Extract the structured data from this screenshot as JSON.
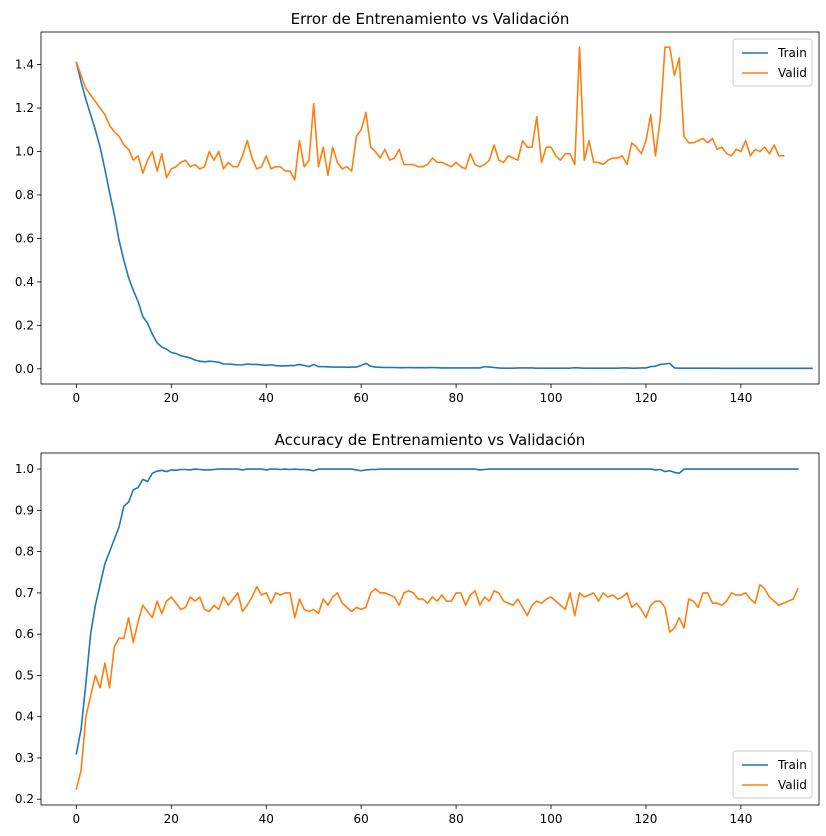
{
  "chart_data": [
    {
      "type": "line",
      "title": "Error de Entrenamiento vs Validación",
      "xlabel": "",
      "ylabel": "",
      "xlim": [
        -7.45,
        156.45
      ],
      "ylim": [
        -0.07,
        1.55
      ],
      "xticks": [
        0,
        20,
        40,
        60,
        80,
        100,
        120,
        140
      ],
      "xtick_labels": [
        "0",
        "20",
        "40",
        "60",
        "80",
        "100",
        "120",
        "140"
      ],
      "yticks": [
        0.0,
        0.2,
        0.4,
        0.6,
        0.8,
        1.0,
        1.2,
        1.4
      ],
      "ytick_labels": [
        "0.0",
        "0.2",
        "0.4",
        "0.6",
        "0.8",
        "1.0",
        "1.2",
        "1.4"
      ],
      "grid": false,
      "legend_position": "top-right",
      "series": [
        {
          "name": "Train",
          "color": "#1f77b4",
          "values": [
            1.41,
            1.32,
            1.24,
            1.17,
            1.1,
            1.02,
            0.92,
            0.81,
            0.71,
            0.59,
            0.5,
            0.42,
            0.36,
            0.31,
            0.24,
            0.21,
            0.16,
            0.12,
            0.1,
            0.09,
            0.075,
            0.07,
            0.06,
            0.055,
            0.05,
            0.04,
            0.035,
            0.032,
            0.035,
            0.033,
            0.03,
            0.022,
            0.022,
            0.02,
            0.018,
            0.018,
            0.022,
            0.02,
            0.02,
            0.018,
            0.016,
            0.018,
            0.015,
            0.013,
            0.013,
            0.015,
            0.015,
            0.02,
            0.015,
            0.01,
            0.02,
            0.01,
            0.01,
            0.009,
            0.008,
            0.008,
            0.008,
            0.007,
            0.008,
            0.008,
            0.015,
            0.025,
            0.012,
            0.008,
            0.007,
            0.006,
            0.006,
            0.006,
            0.005,
            0.005,
            0.006,
            0.005,
            0.005,
            0.005,
            0.005,
            0.006,
            0.005,
            0.004,
            0.004,
            0.004,
            0.004,
            0.004,
            0.004,
            0.004,
            0.004,
            0.004,
            0.01,
            0.008,
            0.006,
            0.004,
            0.003,
            0.003,
            0.003,
            0.004,
            0.004,
            0.004,
            0.004,
            0.003,
            0.003,
            0.003,
            0.003,
            0.003,
            0.003,
            0.003,
            0.003,
            0.005,
            0.004,
            0.003,
            0.003,
            0.003,
            0.003,
            0.003,
            0.003,
            0.003,
            0.003,
            0.004,
            0.004,
            0.003,
            0.003,
            0.004,
            0.004,
            0.01,
            0.012,
            0.02,
            0.022,
            0.025,
            0.004,
            0.003,
            0.003,
            0.003,
            0.003,
            0.003,
            0.003,
            0.003,
            0.003,
            0.003,
            0.002,
            0.002,
            0.002,
            0.002,
            0.002,
            0.002,
            0.002,
            0.002,
            0.002,
            0.002,
            0.002,
            0.002,
            0.002,
            0.002,
            0.002,
            0.002,
            0.002,
            0.002,
            0.002,
            0.002
          ]
        },
        {
          "name": "Valid",
          "color": "#ff7f0e",
          "values": [
            1.41,
            1.35,
            1.29,
            1.26,
            1.23,
            1.2,
            1.17,
            1.12,
            1.09,
            1.07,
            1.03,
            1.01,
            0.96,
            0.98,
            0.9,
            0.96,
            1.0,
            0.91,
            0.99,
            0.88,
            0.92,
            0.93,
            0.95,
            0.96,
            0.93,
            0.94,
            0.92,
            0.93,
            1.0,
            0.96,
            1.0,
            0.92,
            0.95,
            0.93,
            0.93,
            0.98,
            1.05,
            0.97,
            0.92,
            0.93,
            0.98,
            0.92,
            0.93,
            0.93,
            0.91,
            0.91,
            0.87,
            1.05,
            0.93,
            0.96,
            1.22,
            0.93,
            1.02,
            0.89,
            1.02,
            0.95,
            0.92,
            0.93,
            0.91,
            1.07,
            1.1,
            1.18,
            1.02,
            1.0,
            0.97,
            1.01,
            0.96,
            0.97,
            1.01,
            0.94,
            0.94,
            0.94,
            0.93,
            0.93,
            0.94,
            0.97,
            0.95,
            0.95,
            0.94,
            0.93,
            0.95,
            0.93,
            0.92,
            0.99,
            0.94,
            0.93,
            0.94,
            0.96,
            1.03,
            0.96,
            0.95,
            0.98,
            0.97,
            0.96,
            1.05,
            1.02,
            1.02,
            1.16,
            0.95,
            1.02,
            1.02,
            0.98,
            0.96,
            0.99,
            0.99,
            0.94,
            1.48,
            0.96,
            1.05,
            0.95,
            0.95,
            0.94,
            0.96,
            0.97,
            0.97,
            0.98,
            0.94,
            1.04,
            1.02,
            0.99,
            1.05,
            1.17,
            0.98,
            1.15,
            1.48,
            1.48,
            1.35,
            1.43,
            1.07,
            1.04,
            1.04,
            1.05,
            1.06,
            1.04,
            1.06,
            1.01,
            1.02,
            0.99,
            0.98,
            1.01,
            1.0,
            1.05,
            0.98,
            1.01,
            1.0,
            1.02,
            0.99,
            1.03,
            0.98,
            0.98
          ]
        }
      ]
    },
    {
      "type": "line",
      "title": "Accuracy de Entrenamiento vs Validación",
      "xlabel": "",
      "ylabel": "",
      "xlim": [
        -7.45,
        156.45
      ],
      "ylim": [
        0.186,
        1.039
      ],
      "xticks": [
        0,
        20,
        40,
        60,
        80,
        100,
        120,
        140
      ],
      "xtick_labels": [
        "0",
        "20",
        "40",
        "60",
        "80",
        "100",
        "120",
        "140"
      ],
      "yticks": [
        0.2,
        0.3,
        0.4,
        0.5,
        0.6,
        0.7,
        0.8,
        0.9,
        1.0
      ],
      "ytick_labels": [
        "0.2",
        "0.3",
        "0.4",
        "0.5",
        "0.6",
        "0.7",
        "0.8",
        "0.9",
        "1.0"
      ],
      "grid": false,
      "legend_position": "bottom-right",
      "series": [
        {
          "name": "Train",
          "color": "#1f77b4",
          "values": [
            0.31,
            0.37,
            0.48,
            0.6,
            0.67,
            0.72,
            0.77,
            0.8,
            0.83,
            0.86,
            0.91,
            0.92,
            0.95,
            0.955,
            0.975,
            0.97,
            0.99,
            0.995,
            0.997,
            0.994,
            0.998,
            0.997,
            0.999,
            0.999,
            0.998,
            1.0,
            0.999,
            0.998,
            0.998,
            0.999,
            1.0,
            1.0,
            1.0,
            1.0,
            1.0,
            0.998,
            1.0,
            1.0,
            1.0,
            1.0,
            0.998,
            1.0,
            1.0,
            0.999,
            1.0,
            0.999,
            1.0,
            0.999,
            0.999,
            0.998,
            0.996,
            1.0,
            1.0,
            1.0,
            1.0,
            1.0,
            1.0,
            1.0,
            1.0,
            0.998,
            0.996,
            0.998,
            0.999,
            0.999,
            1.0,
            1.0,
            1.0,
            1.0,
            1.0,
            1.0,
            1.0,
            1.0,
            1.0,
            1.0,
            1.0,
            1.0,
            1.0,
            1.0,
            1.0,
            1.0,
            1.0,
            1.0,
            1.0,
            1.0,
            1.0,
            0.998,
            0.999,
            1.0,
            1.0,
            1.0,
            1.0,
            1.0,
            1.0,
            1.0,
            1.0,
            1.0,
            1.0,
            1.0,
            1.0,
            1.0,
            1.0,
            1.0,
            1.0,
            1.0,
            1.0,
            1.0,
            1.0,
            1.0,
            1.0,
            1.0,
            1.0,
            1.0,
            1.0,
            1.0,
            1.0,
            1.0,
            1.0,
            1.0,
            1.0,
            1.0,
            1.0,
            1.0,
            0.998,
            0.999,
            0.994,
            0.996,
            0.992,
            0.99,
            1.0,
            1.0,
            1.0,
            1.0,
            1.0,
            1.0,
            1.0,
            1.0,
            1.0,
            1.0,
            1.0,
            1.0,
            1.0,
            1.0,
            1.0,
            1.0,
            1.0,
            1.0,
            1.0,
            1.0,
            1.0,
            1.0,
            1.0,
            1.0,
            1.0
          ]
        },
        {
          "name": "Valid",
          "color": "#ff7f0e",
          "values": [
            0.225,
            0.27,
            0.4,
            0.45,
            0.5,
            0.47,
            0.53,
            0.47,
            0.57,
            0.59,
            0.59,
            0.64,
            0.58,
            0.63,
            0.67,
            0.655,
            0.64,
            0.68,
            0.65,
            0.68,
            0.69,
            0.675,
            0.66,
            0.665,
            0.69,
            0.68,
            0.69,
            0.66,
            0.655,
            0.67,
            0.66,
            0.69,
            0.67,
            0.685,
            0.7,
            0.655,
            0.67,
            0.69,
            0.715,
            0.695,
            0.7,
            0.675,
            0.7,
            0.695,
            0.7,
            0.7,
            0.64,
            0.685,
            0.66,
            0.655,
            0.66,
            0.65,
            0.685,
            0.67,
            0.69,
            0.7,
            0.675,
            0.665,
            0.655,
            0.665,
            0.66,
            0.665,
            0.7,
            0.71,
            0.7,
            0.7,
            0.695,
            0.69,
            0.67,
            0.7,
            0.705,
            0.7,
            0.685,
            0.685,
            0.675,
            0.69,
            0.68,
            0.695,
            0.68,
            0.68,
            0.7,
            0.7,
            0.67,
            0.695,
            0.705,
            0.67,
            0.69,
            0.68,
            0.705,
            0.7,
            0.68,
            0.675,
            0.67,
            0.685,
            0.665,
            0.645,
            0.67,
            0.68,
            0.675,
            0.685,
            0.69,
            0.68,
            0.67,
            0.66,
            0.7,
            0.645,
            0.7,
            0.69,
            0.695,
            0.7,
            0.68,
            0.7,
            0.69,
            0.695,
            0.685,
            0.69,
            0.7,
            0.665,
            0.675,
            0.66,
            0.64,
            0.67,
            0.68,
            0.68,
            0.665,
            0.605,
            0.615,
            0.64,
            0.615,
            0.685,
            0.68,
            0.665,
            0.7,
            0.7,
            0.675,
            0.675,
            0.67,
            0.68,
            0.7,
            0.695,
            0.695,
            0.7,
            0.685,
            0.675,
            0.72,
            0.71,
            0.69,
            0.68,
            0.67,
            0.675,
            0.68,
            0.685,
            0.71
          ]
        }
      ]
    }
  ]
}
